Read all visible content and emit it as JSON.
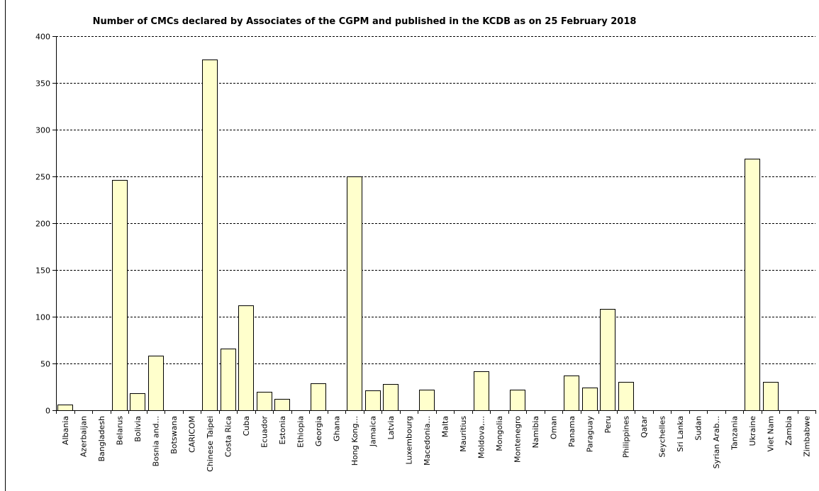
{
  "chart_data": {
    "type": "bar",
    "title": "Number of CMCs declared by Associates of the CGPM and published in the KCDB as on 25 February 2018",
    "xlabel": "",
    "ylabel": "",
    "ylim": [
      0,
      400
    ],
    "yticks": [
      0,
      50,
      100,
      150,
      200,
      250,
      300,
      350,
      400
    ],
    "grid": "horizontal dashed",
    "legend": "none",
    "bar_color": "#ffffcc",
    "bar_edge_color": "#000000",
    "categories": [
      "Albania",
      "Azerbaijan",
      "Bangladesh",
      "Belarus",
      "Bolivia",
      "Bosnia and...",
      "Botswana",
      "CARICOM",
      "Chinese Taipei",
      "Costa Rica",
      "Cuba",
      "Ecuador",
      "Estonia",
      "Ethiopia",
      "Georgia",
      "Ghana",
      "Hong Kong...",
      "Jamaica",
      "Latvia",
      "Luxembourg",
      "Macedonia...",
      "Malta",
      "Mauritius",
      "Moldova,...",
      "Mongolia",
      "Montenegro",
      "Namibia",
      "Oman",
      "Panama",
      "Paraguay",
      "Peru",
      "Philippines",
      "Qatar",
      "Seychelles",
      "Sri Lanka",
      "Sudan",
      "Syrian Arab...",
      "Tanzania",
      "Ukraine",
      "Viet Nam",
      "Zambia",
      "Zimbabwe"
    ],
    "values": [
      6,
      0,
      0,
      246,
      18,
      58,
      0,
      0,
      375,
      66,
      112,
      20,
      12,
      0,
      29,
      0,
      250,
      21,
      28,
      0,
      22,
      0,
      0,
      42,
      0,
      22,
      0,
      0,
      37,
      24,
      108,
      30,
      0,
      0,
      0,
      0,
      0,
      0,
      269,
      30,
      0,
      0
    ]
  }
}
